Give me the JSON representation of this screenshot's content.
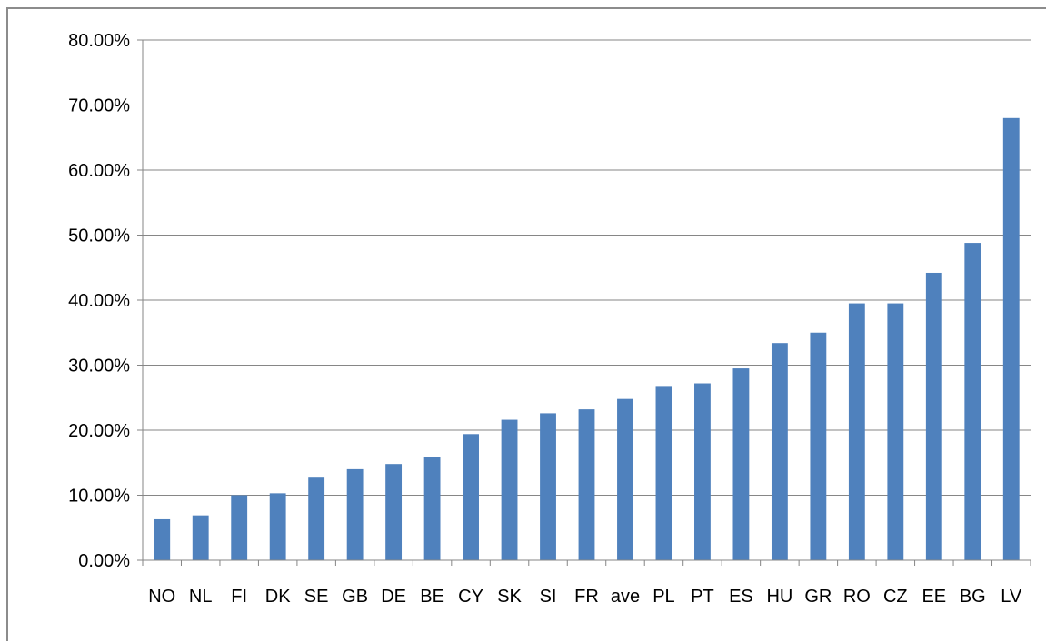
{
  "chart_data": {
    "type": "bar",
    "title": "",
    "xlabel": "",
    "ylabel": "",
    "ylim": [
      0,
      0.8
    ],
    "y_tick_step": 0.1,
    "y_tick_format": "percent_2dp",
    "grid": true,
    "legend": "none",
    "bar_color": "#4f81bd",
    "categories": [
      "NO",
      "NL",
      "FI",
      "DK",
      "SE",
      "GB",
      "DE",
      "BE",
      "CY",
      "SK",
      "SI",
      "FR",
      "ave",
      "PL",
      "PT",
      "ES",
      "HU",
      "GR",
      "RO",
      "CZ",
      "EE",
      "BG",
      "LV"
    ],
    "values": [
      0.063,
      0.069,
      0.1,
      0.103,
      0.127,
      0.14,
      0.148,
      0.159,
      0.194,
      0.216,
      0.226,
      0.232,
      0.248,
      0.268,
      0.272,
      0.295,
      0.334,
      0.35,
      0.395,
      0.395,
      0.442,
      0.488,
      0.68
    ]
  }
}
